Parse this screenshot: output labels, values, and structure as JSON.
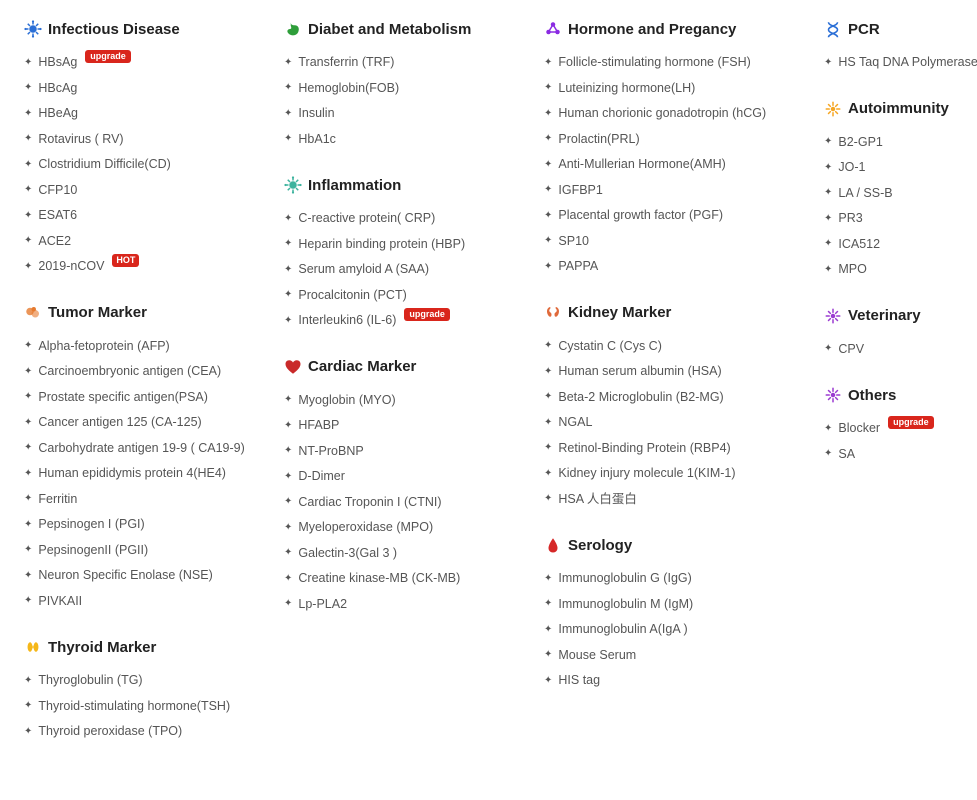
{
  "columns": [
    [
      {
        "id": "infectious",
        "title": "Infectious Disease",
        "iconColor": "#2b6fd6",
        "iconType": "virus",
        "items": [
          {
            "label": "HBsAg",
            "badge": "upgrade"
          },
          {
            "label": "HBcAg"
          },
          {
            "label": "HBeAg"
          },
          {
            "label": "Rotavirus ( RV)"
          },
          {
            "label": "Clostridium Difficile(CD)"
          },
          {
            "label": "CFP10"
          },
          {
            "label": "ESAT6"
          },
          {
            "label": "ACE2"
          },
          {
            "label": "2019-nCOV",
            "badge": "HOT",
            "badgeClass": "badge-hot"
          }
        ]
      },
      {
        "id": "tumor",
        "title": "Tumor Marker",
        "iconColor": "#e67a2e",
        "iconType": "cell",
        "items": [
          {
            "label": "Alpha-fetoprotein (AFP)"
          },
          {
            "label": "Carcinoembryonic antigen (CEA)"
          },
          {
            "label": "Prostate specific antigen(PSA)"
          },
          {
            "label": "Cancer antigen 125 (CA-125)"
          },
          {
            "label": "Carbohydrate antigen 19-9 ( CA19-9)"
          },
          {
            "label": "Human epididymis protein 4(HE4)"
          },
          {
            "label": "Ferritin"
          },
          {
            "label": "Pepsinogen I (PGI)"
          },
          {
            "label": "PepsinogenII (PGII)"
          },
          {
            "label": "Neuron Specific Enolase (NSE)"
          },
          {
            "label": "PIVKAII"
          }
        ]
      },
      {
        "id": "thyroid",
        "title": "Thyroid Marker",
        "iconColor": "#f5b719",
        "iconType": "thyroid",
        "items": [
          {
            "label": "Thyroglobulin (TG)"
          },
          {
            "label": "Thyroid-stimulating hormone(TSH)"
          },
          {
            "label": "Thyroid peroxidase (TPO)"
          }
        ]
      }
    ],
    [
      {
        "id": "diabet",
        "title": "Diabet and Metabolism",
        "iconColor": "#2e9e3a",
        "iconType": "stomach",
        "items": [
          {
            "label": "Transferrin (TRF)"
          },
          {
            "label": "Hemoglobin(FOB)"
          },
          {
            "label": "Insulin"
          },
          {
            "label": "HbA1c"
          }
        ]
      },
      {
        "id": "inflammation",
        "title": "Inflammation",
        "iconColor": "#3db39e",
        "iconType": "virus",
        "items": [
          {
            "label": "C-reactive protein( CRP)"
          },
          {
            "label": "Heparin binding protein (HBP)"
          },
          {
            "label": "Serum amyloid A (SAA)"
          },
          {
            "label": "Procalcitonin (PCT)"
          },
          {
            "label": "Interleukin6 (IL-6)",
            "badge": "upgrade"
          }
        ]
      },
      {
        "id": "cardiac",
        "title": "Cardiac Marker",
        "iconColor": "#c92a2a",
        "iconType": "heart",
        "items": [
          {
            "label": "Myoglobin (MYO)"
          },
          {
            "label": "HFABP"
          },
          {
            "label": "NT-ProBNP"
          },
          {
            "label": "D-Dimer"
          },
          {
            "label": "Cardiac Troponin I (CTNI)"
          },
          {
            "label": "Myeloperoxidase (MPO)"
          },
          {
            "label": "Galectin-3(Gal 3 )"
          },
          {
            "label": "Creatine kinase-MB (CK-MB)"
          },
          {
            "label": "Lp-PLA2"
          }
        ]
      }
    ],
    [
      {
        "id": "hormone",
        "title": "Hormone and Pregancy",
        "iconColor": "#8a2be2",
        "iconType": "molecule",
        "items": [
          {
            "label": "Follicle-stimulating hormone (FSH)"
          },
          {
            "label": "Luteinizing hormone(LH)"
          },
          {
            "label": "Human chorionic gonadotropin (hCG)"
          },
          {
            "label": "Prolactin(PRL)"
          },
          {
            "label": "Anti-Mullerian Hormone(AMH)"
          },
          {
            "label": "IGFBP1"
          },
          {
            "label": "Placental growth factor (PGF)"
          },
          {
            "label": "SP10"
          },
          {
            "label": "PAPPA"
          }
        ]
      },
      {
        "id": "kidney",
        "title": "Kidney Marker",
        "iconColor": "#e06a3b",
        "iconType": "kidney",
        "items": [
          {
            "label": "Cystatin C (Cys C)"
          },
          {
            "label": "Human serum albumin (HSA)"
          },
          {
            "label": "Beta-2 Microglobulin (B2-MG)"
          },
          {
            "label": "NGAL"
          },
          {
            "label": "Retinol-Binding Protein (RBP4)"
          },
          {
            "label": "Kidney injury molecule 1(KIM-1)"
          },
          {
            "label": "HSA 人白蛋白"
          }
        ]
      },
      {
        "id": "serology",
        "title": "Serology",
        "iconColor": "#d62828",
        "iconType": "drop",
        "items": [
          {
            "label": "Immunoglobulin G (IgG)"
          },
          {
            "label": "Immunoglobulin M (IgM)"
          },
          {
            "label": "Immunoglobulin A(IgA )"
          },
          {
            "label": "Mouse Serum"
          },
          {
            "label": "HIS tag"
          }
        ]
      }
    ],
    [
      {
        "id": "pcr",
        "title": "PCR",
        "iconColor": "#2b6fd6",
        "iconType": "dna",
        "items": [
          {
            "label": "HS Taq DNA Polymerase"
          }
        ]
      },
      {
        "id": "autoimmunity",
        "title": "Autoimmunity",
        "iconColor": "#f5a623",
        "iconType": "burst",
        "items": [
          {
            "label": "B2-GP1"
          },
          {
            "label": "JO-1"
          },
          {
            "label": "LA / SS-B"
          },
          {
            "label": "PR3"
          },
          {
            "label": "ICA512"
          },
          {
            "label": "MPO"
          }
        ]
      },
      {
        "id": "veterinary",
        "title": "Veterinary",
        "iconColor": "#9b3bd1",
        "iconType": "burst",
        "items": [
          {
            "label": "CPV"
          }
        ]
      },
      {
        "id": "others",
        "title": "Others",
        "iconColor": "#9b3bd1",
        "iconType": "burst",
        "items": [
          {
            "label": "Blocker",
            "badge": "upgrade"
          },
          {
            "label": "SA"
          }
        ]
      }
    ]
  ]
}
